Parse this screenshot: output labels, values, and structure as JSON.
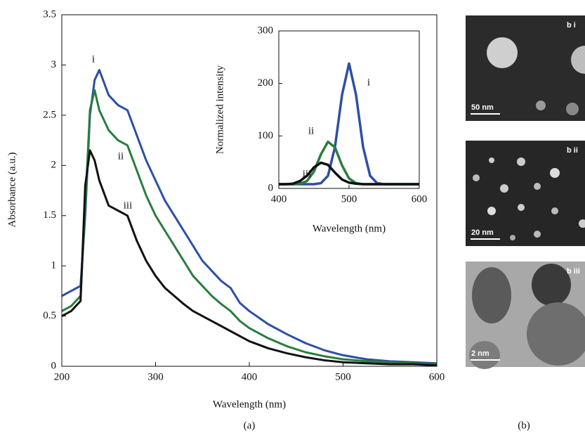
{
  "chart_data": [
    {
      "type": "line",
      "xlabel": "Wavelength (nm)",
      "ylabel": "Absorbance (a.u.)",
      "x": [
        200,
        210,
        220,
        225,
        230,
        235,
        240,
        250,
        260,
        270,
        280,
        290,
        300,
        310,
        320,
        330,
        340,
        350,
        360,
        370,
        380,
        390,
        400,
        420,
        440,
        460,
        480,
        500,
        525,
        550,
        575,
        600
      ],
      "series": [
        {
          "name": "i",
          "color": "#2e4fa3",
          "values": [
            0.7,
            0.75,
            0.8,
            1.5,
            2.5,
            2.85,
            2.95,
            2.7,
            2.6,
            2.55,
            2.3,
            2.05,
            1.85,
            1.65,
            1.5,
            1.35,
            1.2,
            1.05,
            0.95,
            0.85,
            0.78,
            0.63,
            0.55,
            0.42,
            0.32,
            0.23,
            0.16,
            0.11,
            0.07,
            0.05,
            0.04,
            0.03
          ]
        },
        {
          "name": "ii",
          "color": "#2a7d3c",
          "values": [
            0.55,
            0.6,
            0.7,
            1.6,
            2.55,
            2.75,
            2.55,
            2.35,
            2.25,
            2.2,
            1.95,
            1.7,
            1.5,
            1.35,
            1.2,
            1.05,
            0.9,
            0.8,
            0.7,
            0.62,
            0.55,
            0.45,
            0.38,
            0.28,
            0.2,
            0.14,
            0.1,
            0.07,
            0.05,
            0.04,
            0.03,
            0.02
          ]
        },
        {
          "name": "iii",
          "color": "#111111",
          "values": [
            0.5,
            0.55,
            0.65,
            1.8,
            2.15,
            2.05,
            1.85,
            1.6,
            1.55,
            1.5,
            1.25,
            1.05,
            0.9,
            0.78,
            0.7,
            0.62,
            0.55,
            0.5,
            0.45,
            0.4,
            0.35,
            0.3,
            0.25,
            0.18,
            0.13,
            0.09,
            0.06,
            0.04,
            0.03,
            0.02,
            0.02,
            0.01
          ]
        }
      ],
      "xlim": [
        200,
        600
      ],
      "ylim": [
        0,
        3.5
      ],
      "xticks": [
        200,
        300,
        400,
        500,
        600
      ],
      "yticks": [
        0,
        0.5,
        1,
        1.5,
        2,
        2.5,
        3,
        3.5
      ]
    },
    {
      "type": "line",
      "xlabel": "Wavelength (nm)",
      "ylabel": "Normalized intensity",
      "x": [
        400,
        410,
        420,
        430,
        440,
        450,
        460,
        470,
        480,
        490,
        500,
        510,
        520,
        530,
        540,
        550,
        560,
        570,
        580,
        590,
        600
      ],
      "series": [
        {
          "name": "i",
          "color": "#2e4fa3",
          "values": [
            8,
            8,
            8,
            8,
            8,
            8,
            10,
            24,
            79,
            178,
            238,
            178,
            79,
            24,
            10,
            8,
            8,
            8,
            8,
            8,
            8
          ]
        },
        {
          "name": "ii",
          "color": "#2a7d3c",
          "values": [
            8,
            8,
            8,
            9,
            14,
            32,
            65,
            89,
            78,
            44,
            19,
            10,
            8,
            8,
            8,
            8,
            8,
            8,
            8,
            8,
            8
          ]
        },
        {
          "name": "iii",
          "color": "#111111",
          "values": [
            8,
            8,
            9,
            14,
            24,
            40,
            49,
            45,
            30,
            17,
            11,
            9,
            8,
            8,
            8,
            8,
            8,
            8,
            8,
            8,
            8
          ]
        }
      ],
      "xlim": [
        400,
        600
      ],
      "ylim": [
        0,
        300
      ],
      "xticks": [
        400,
        500,
        600
      ],
      "yticks": [
        0,
        100,
        200,
        300
      ]
    }
  ],
  "panels": {
    "a_label": "(a)",
    "b_label": "(b)",
    "images": [
      {
        "tag": "b i",
        "scale": "50 nm"
      },
      {
        "tag": "b ii",
        "scale": "20 nm"
      },
      {
        "tag": "b iii",
        "scale": "2 nm"
      }
    ]
  }
}
